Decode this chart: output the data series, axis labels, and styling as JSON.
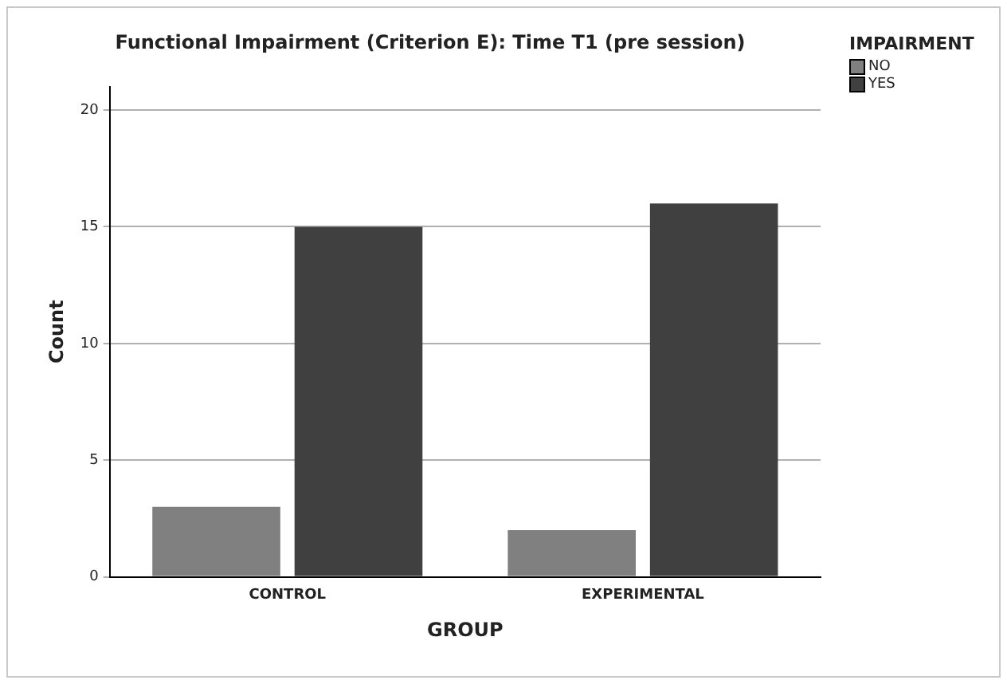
{
  "chart_data": {
    "type": "bar",
    "title": "Functional Impairment (Criterion E): Time T1 (pre session)",
    "xlabel": "GROUP",
    "ylabel": "Count",
    "legend_title": "IMPAIRMENT",
    "categories": [
      "CONTROL",
      "EXPERIMENTAL"
    ],
    "series": [
      {
        "name": "NO",
        "color": "#808080",
        "values": [
          3,
          2
        ]
      },
      {
        "name": "YES",
        "color": "#404040",
        "values": [
          15,
          16
        ]
      }
    ],
    "ylim": [
      0,
      21
    ],
    "yticks": [
      0,
      5,
      10,
      15,
      20
    ],
    "grid": "y",
    "legend": "top right"
  }
}
